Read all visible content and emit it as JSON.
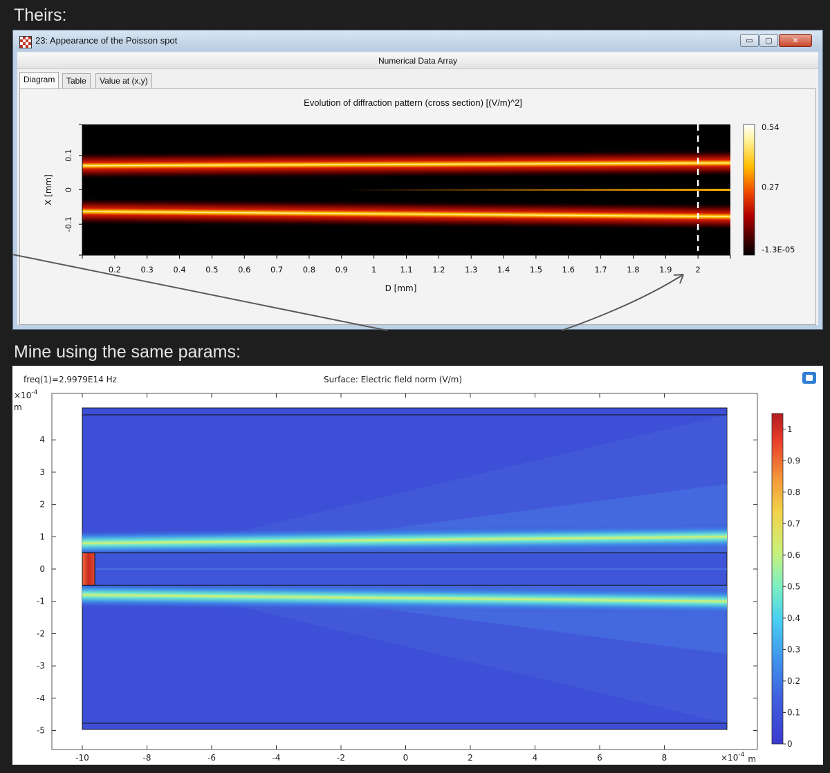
{
  "captions": {
    "theirs": "Theirs:",
    "mine": "Mine using the same params:"
  },
  "window": {
    "title": "23: Appearance of the Poisson spot",
    "subheader": "Numerical Data Array",
    "buttons": {
      "minimize": "▭",
      "maximize": "▢",
      "close": "✕"
    },
    "tabs": [
      "Diagram",
      "Table",
      "Value at (x,y)"
    ],
    "active_tab": 0
  },
  "chart_data": [
    {
      "type": "heatmap",
      "title": "Evolution of diffraction pattern (cross section)  [(V/m)^2]",
      "xlabel": "D [mm]",
      "ylabel": "X [mm]",
      "xlim": [
        0.1,
        2.1
      ],
      "ylim": [
        -0.19,
        0.19
      ],
      "x_ticks": [
        "0.2",
        "0.3",
        "0.4",
        "0.5",
        "0.6",
        "0.7",
        "0.8",
        "0.9",
        "1",
        "1.1",
        "1.2",
        "1.3",
        "1.4",
        "1.5",
        "1.6",
        "1.7",
        "1.8",
        "1.9",
        "2"
      ],
      "y_ticks": [
        "0.1",
        "0",
        "-0.1"
      ],
      "colorbar": {
        "labels": [
          "0.54",
          "0.27",
          "-1.3E-05"
        ],
        "min": -1.3e-05,
        "max": 0.54,
        "colormap": "black-red-yellow-white"
      },
      "marker_line_x": 2,
      "bright_bands": [
        {
          "x_start": 0.1,
          "center_start": 0.07,
          "center_end": 0.078
        },
        {
          "x_start": 0.1,
          "center_start": -0.063,
          "center_end": -0.078
        }
      ],
      "center_spot": {
        "x_start": 0.9,
        "center": 0
      }
    },
    {
      "type": "heatmap",
      "title": "Surface: Electric field norm (V/m)",
      "annotation": "freq(1)=2.9979E14 Hz",
      "x_unit_label": "×10",
      "x_unit_exp": "-4",
      "x_unit": "m",
      "y_unit_label": "×10",
      "y_unit_exp": "-4",
      "y_unit": "m",
      "xlim": [
        -10,
        10
      ],
      "ylim": [
        -5,
        5
      ],
      "x_ticks": [
        "-10",
        "-8",
        "-6",
        "-4",
        "-2",
        "0",
        "2",
        "4",
        "6",
        "8"
      ],
      "y_ticks": [
        "4",
        "3",
        "2",
        "1",
        "0",
        "-1",
        "-2",
        "-3",
        "-4",
        "-5"
      ],
      "colorbar": {
        "labels": [
          "1",
          "0.9",
          "0.8",
          "0.7",
          "0.6",
          "0.5",
          "0.4",
          "0.3",
          "0.2",
          "0.1",
          "0"
        ],
        "min": 0,
        "max": 1.05,
        "colormap": "jet"
      },
      "obstacle": {
        "x": [
          -10,
          -9.6
        ],
        "y": [
          -0.5,
          0.5
        ]
      },
      "bright_bands": [
        {
          "center_start": 0.8,
          "center_end": 1.0
        },
        {
          "center_start": -0.8,
          "center_end": -1.0
        }
      ]
    }
  ],
  "arrow_colors": {
    "arrow": "#555555"
  },
  "colors": {
    "page_bg": "#1e1e1e",
    "window_frame": "#bcd0e6",
    "jet_bg": "#3d4fd6"
  }
}
